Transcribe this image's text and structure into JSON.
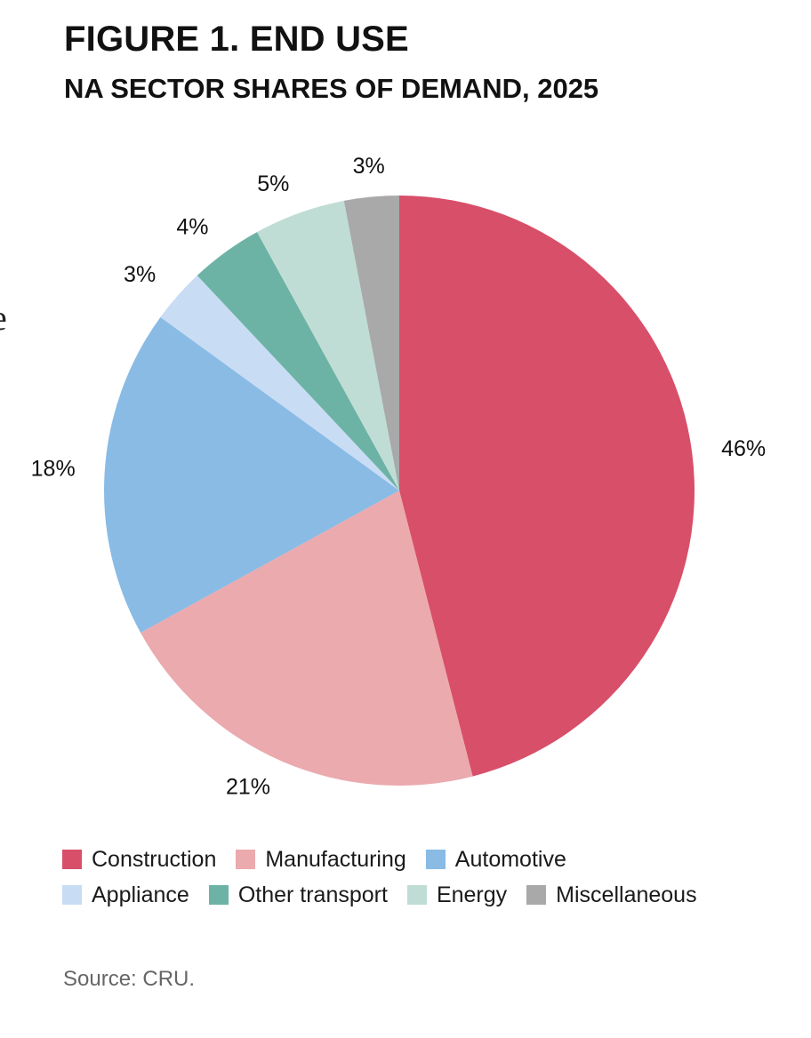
{
  "figure": {
    "title": "FIGURE 1. END USE",
    "subtitle": "NA SECTOR SHARES OF DEMAND, 2025",
    "edge_glyph": "e",
    "source": "Source: CRU."
  },
  "chart_data": {
    "type": "pie",
    "title": "FIGURE 1. END USE",
    "subtitle": "NA SECTOR SHARES OF DEMAND, 2025",
    "unit": "%",
    "start": "12 o'clock, clockwise",
    "legend_position": "bottom",
    "slices": [
      {
        "name": "Construction",
        "value": 46,
        "label": "46%",
        "color": "#d84f69"
      },
      {
        "name": "Manufacturing",
        "value": 21,
        "label": "21%",
        "color": "#ebaaae"
      },
      {
        "name": "Automotive",
        "value": 18,
        "label": "18%",
        "color": "#89bbe5"
      },
      {
        "name": "Appliance",
        "value": 3,
        "label": "3%",
        "color": "#c8dcf4"
      },
      {
        "name": "Other transport",
        "value": 4,
        "label": "4%",
        "color": "#6db3a5"
      },
      {
        "name": "Energy",
        "value": 5,
        "label": "5%",
        "color": "#c0ddd5"
      },
      {
        "name": "Miscellaneous",
        "value": 3,
        "label": "3%",
        "color": "#a9a9a9"
      }
    ],
    "legend_rows": [
      [
        "Construction",
        "Manufacturing",
        "Automotive"
      ],
      [
        "Appliance",
        "Other transport",
        "Energy",
        "Miscellaneous"
      ]
    ]
  }
}
